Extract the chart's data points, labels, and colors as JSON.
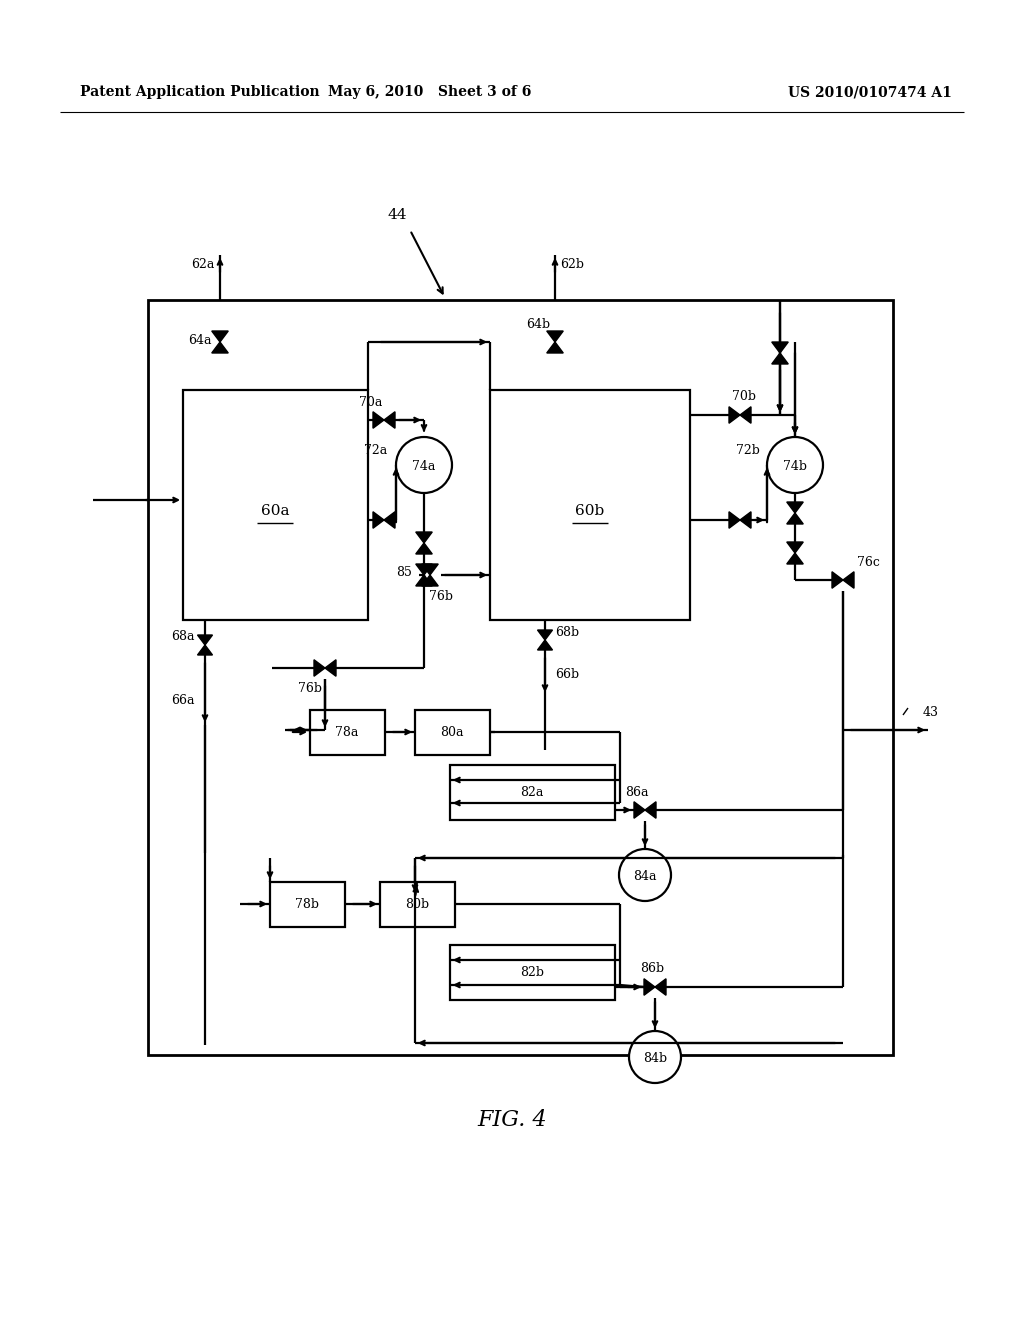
{
  "bg_color": "#ffffff",
  "header_left": "Patent Application Publication",
  "header_mid": "May 6, 2010   Sheet 3 of 6",
  "header_right": "US 2010/0107474 A1",
  "fig_label": "FIG. 4"
}
